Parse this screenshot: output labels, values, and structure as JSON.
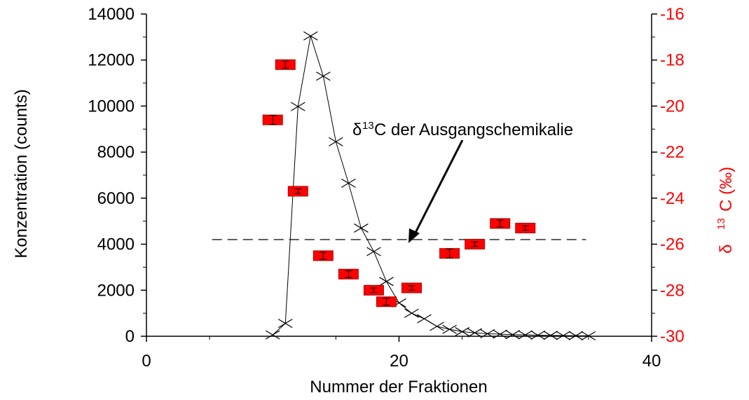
{
  "chart_data": {
    "type": "scatter",
    "xlabel": "Nummer der Fraktionen",
    "ylabel": "Konzentration (counts)",
    "y2label_parts": [
      "δ",
      "13",
      "C (‰)"
    ],
    "xlim": [
      0,
      40
    ],
    "ylim": [
      0,
      14000
    ],
    "y2lim": [
      -30,
      -16
    ],
    "x_ticks": [
      "0",
      "20",
      "40"
    ],
    "y_ticks": [
      "0",
      "2000",
      "4000",
      "6000",
      "8000",
      "10000",
      "12000",
      "14000"
    ],
    "y2_ticks": [
      "-30",
      "-28",
      "-26",
      "-24",
      "-22",
      "-20",
      "-18",
      "-16"
    ],
    "annotation": {
      "prefix": "δ",
      "sup": "13",
      "rest": "C der Ausgangschemikalie",
      "points_to": [
        20.7,
        4200
      ]
    },
    "reference_line": {
      "y": 4200,
      "x_range": [
        5.2,
        34.8
      ]
    },
    "colors": {
      "concentration": "#000000",
      "isotope": "#ff0000",
      "axis_right": "#ff0000"
    },
    "series": [
      {
        "axis": "left",
        "marker": "x",
        "line": true,
        "x": [
          10,
          11,
          12,
          13,
          14,
          15,
          16,
          17,
          18,
          19,
          20,
          21,
          22,
          23,
          24,
          25,
          26,
          27,
          28,
          29,
          30,
          31,
          32,
          33,
          34,
          35
        ],
        "y": [
          60,
          560,
          9980,
          13050,
          11300,
          8450,
          6650,
          4700,
          3680,
          2380,
          1450,
          1000,
          760,
          430,
          300,
          200,
          150,
          110,
          90,
          70,
          60,
          50,
          40,
          30,
          25,
          20
        ]
      },
      {
        "axis": "right",
        "marker": "box",
        "x": [
          10,
          11,
          12,
          14,
          16,
          18,
          19,
          21,
          24,
          26,
          28,
          30
        ],
        "y": [
          -20.6,
          -18.2,
          -23.7,
          -26.5,
          -27.3,
          -28.0,
          -28.5,
          -27.9,
          -26.4,
          -26.0,
          -25.1,
          -25.3
        ],
        "err": [
          0.2,
          0.15,
          0.1,
          0.15,
          0.15,
          0.1,
          0.15,
          0.1,
          0.2,
          0.1,
          0.15,
          0.1
        ]
      }
    ]
  }
}
